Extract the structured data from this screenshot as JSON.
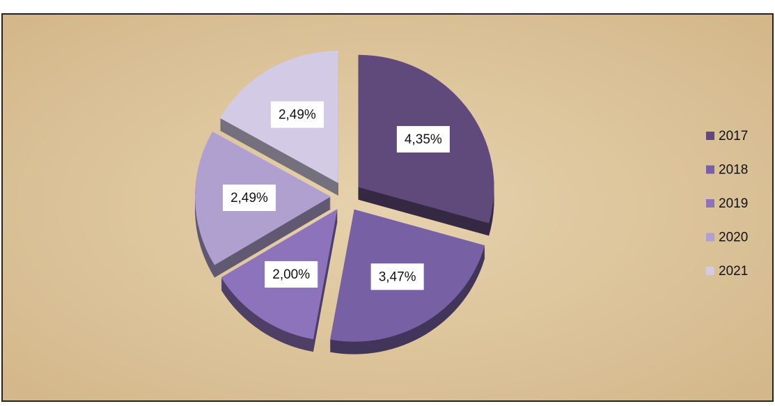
{
  "chart_data": {
    "type": "pie",
    "categories": [
      "2017",
      "2018",
      "2019",
      "2020",
      "2021"
    ],
    "values": [
      4.35,
      3.47,
      2.0,
      2.49,
      2.49
    ],
    "value_labels": [
      "4,35%",
      "3,47%",
      "2,00%",
      "2,49%",
      "2,49%"
    ],
    "colors": [
      "#604a7b",
      "#7860a4",
      "#8d73bb",
      "#b0a0cf",
      "#d3cbe5"
    ],
    "legend": "right"
  }
}
